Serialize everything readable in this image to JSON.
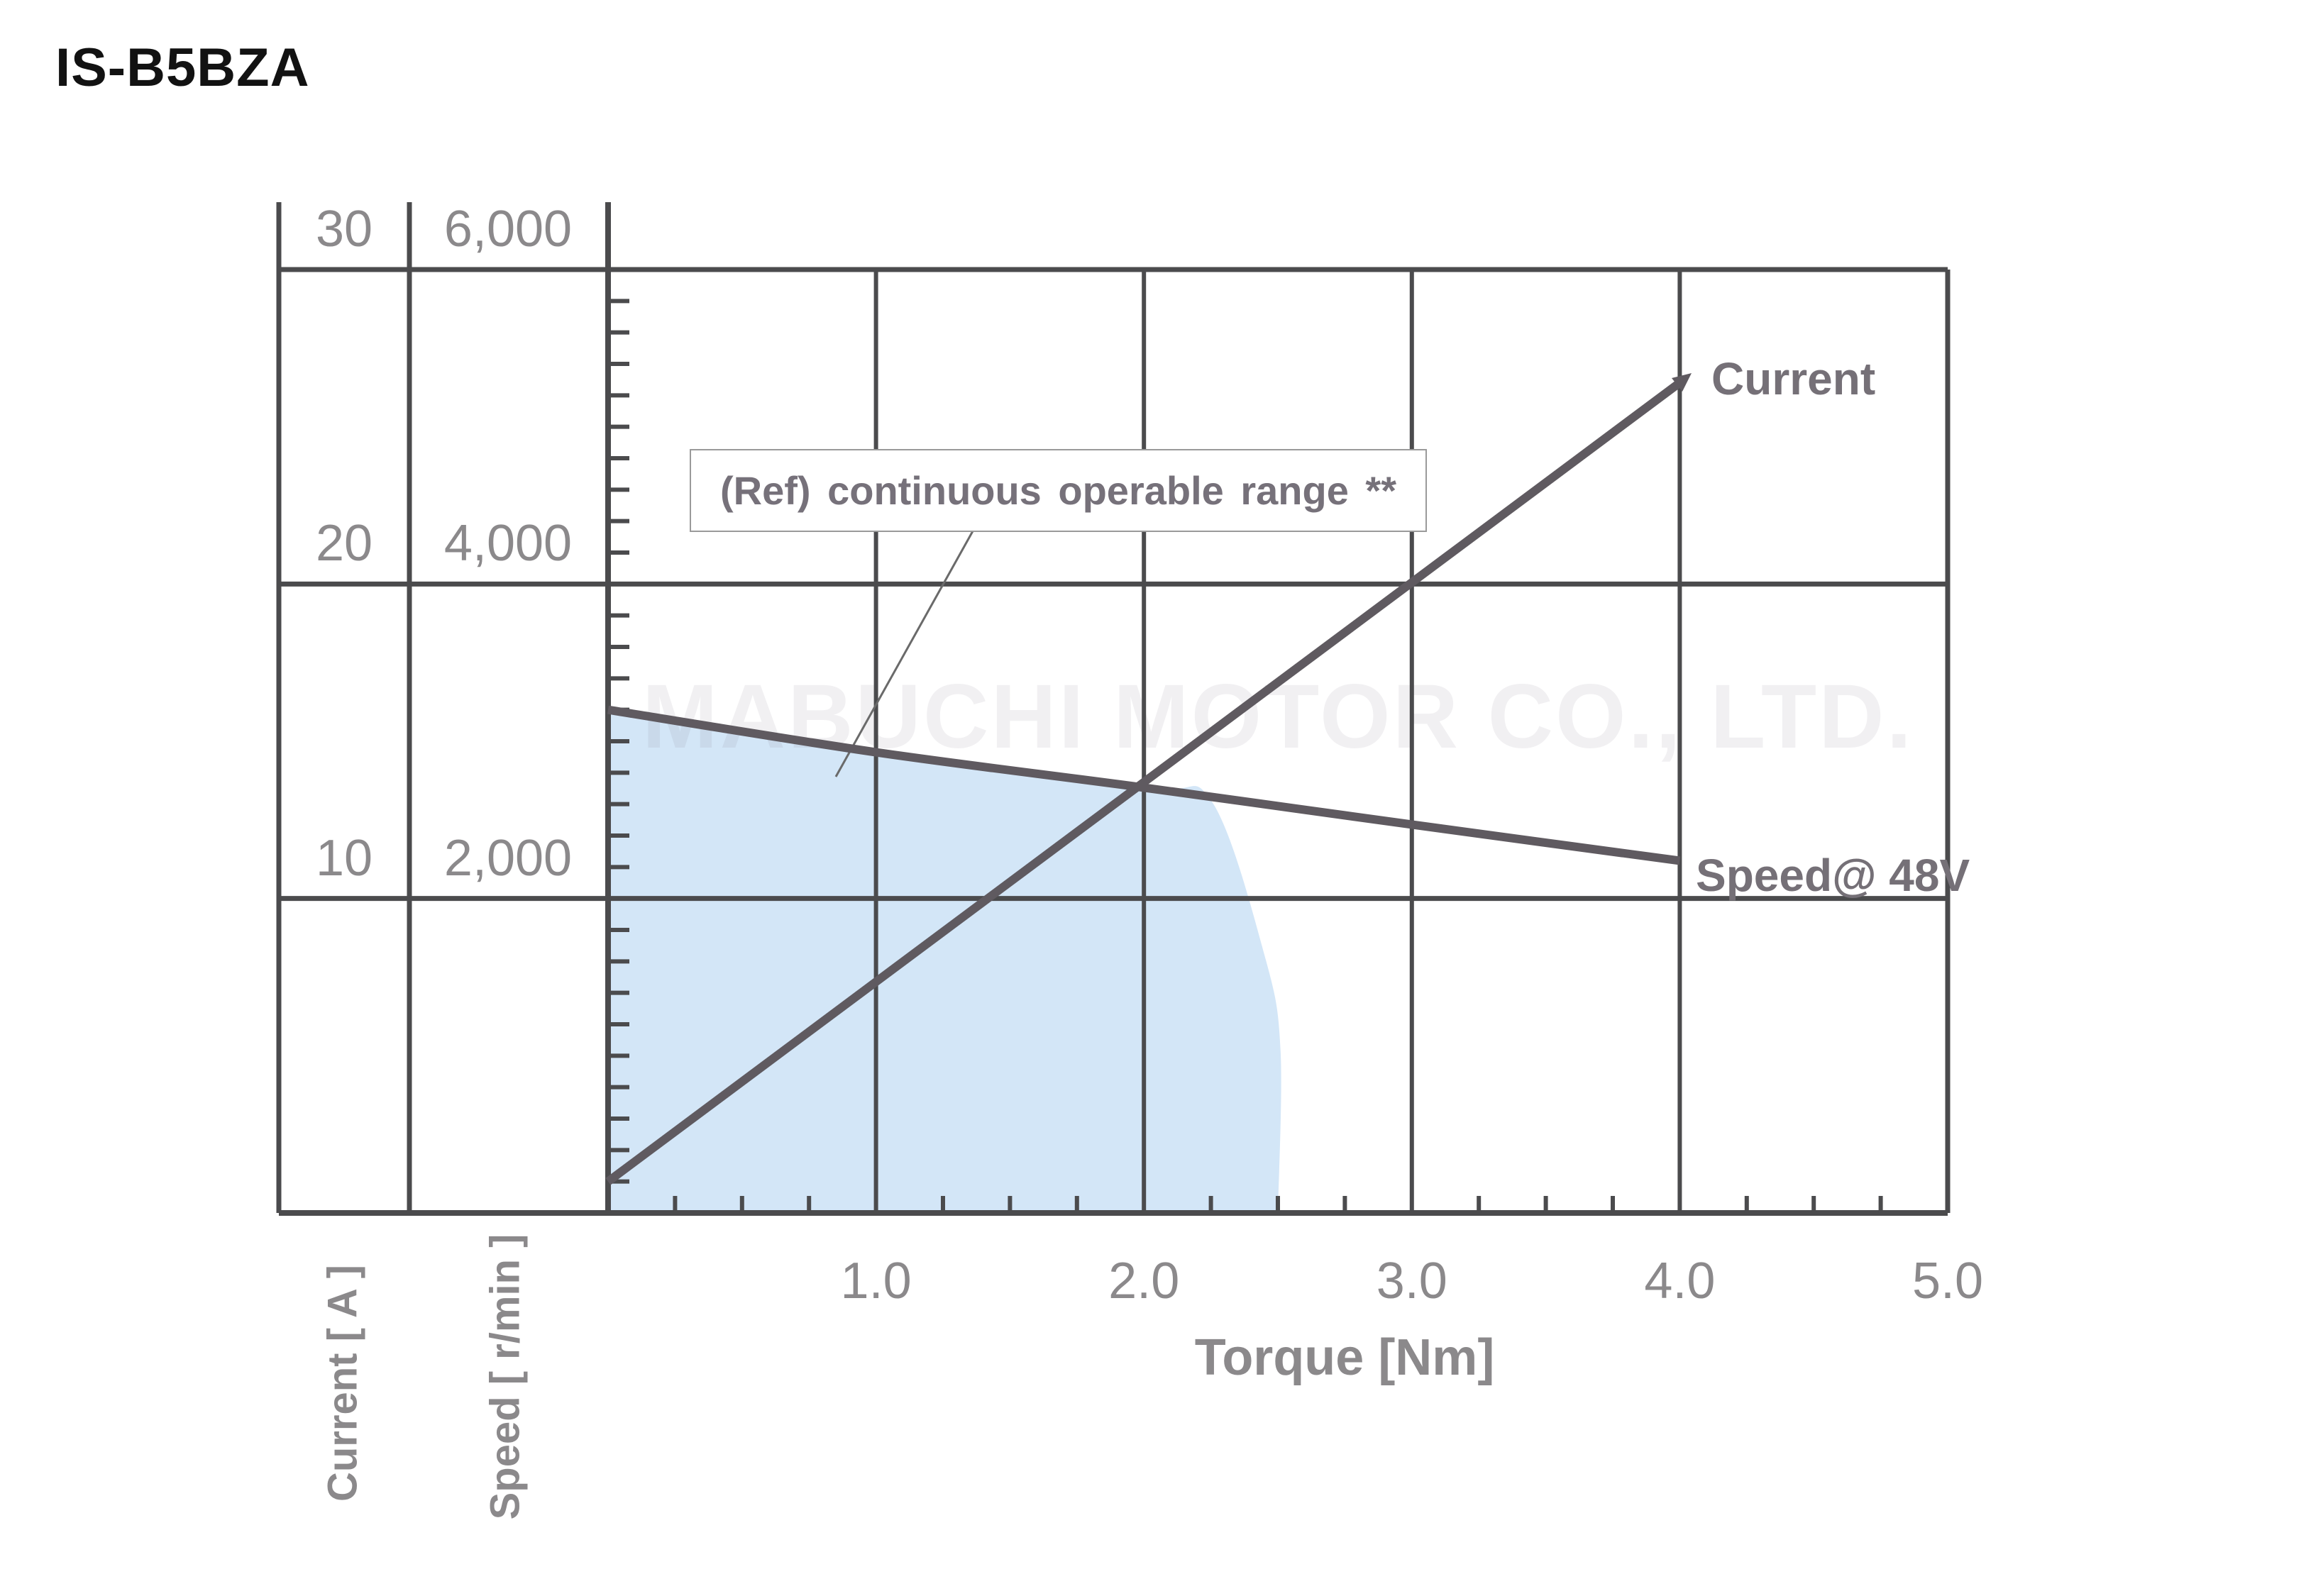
{
  "page": {
    "title": "IS-B5BZA"
  },
  "watermark": {
    "text": "MABUCHI MOTOR CO., LTD."
  },
  "annotation": {
    "label": "(Ref) continuous operable range **"
  },
  "labels": {
    "current_line": "Current",
    "speed_line": "Speed@ 48V",
    "x_title": "Torque [Nm]",
    "y_current_title": "Current [ A ]",
    "y_speed_title": "Speed [ r/min ]"
  },
  "colors": {
    "region_fill": "#d3e6f7",
    "grid": "#4b4b4d",
    "series_line": "#5f5a60",
    "label_gray": "#8b898b",
    "leader": "#6a6a6a",
    "watermark": "rgba(95,85,115,0.09)",
    "annotation_border": "#9a9a9a"
  },
  "chart_data": {
    "type": "line",
    "title": "IS-B5BZA motor performance: current and speed vs torque",
    "xlabel": "Torque [Nm]",
    "x_axis": {
      "range": [
        0,
        5
      ],
      "tick_values": [
        1,
        2,
        3,
        4,
        5
      ],
      "ticks": [
        "1.0",
        "2.0",
        "3.0",
        "4.0",
        "5.0"
      ],
      "minor_step": 0.25
    },
    "y_axis_current": {
      "label": "Current [ A ]",
      "range": [
        0,
        30
      ],
      "tick_values": [
        30,
        20,
        10
      ],
      "ticks": [
        "30",
        "20",
        "10"
      ],
      "minor_step": 1
    },
    "y_axis_speed": {
      "label": "Speed [ r/min ]",
      "range": [
        0,
        6000
      ],
      "tick_values": [
        6000,
        4000,
        2000
      ],
      "ticks": [
        "6,000",
        "4,000",
        "2,000"
      ],
      "minor_step": 200
    },
    "grid": true,
    "legend_position": "inline-labels",
    "series": [
      {
        "name": "Current",
        "axis": "current",
        "units": "A",
        "points": [
          [
            0,
            1.0
          ],
          [
            1.0,
            7.3
          ],
          [
            2.0,
            13.6
          ],
          [
            3.0,
            20.0
          ],
          [
            4.0,
            26.4
          ]
        ]
      },
      {
        "name": "Speed@ 48V",
        "axis": "speed",
        "units": "r/min",
        "points": [
          [
            0,
            3200
          ],
          [
            1.0,
            2930
          ],
          [
            2.0,
            2705
          ],
          [
            3.0,
            2470
          ],
          [
            4.0,
            2240
          ]
        ]
      }
    ],
    "operable_region": {
      "label": "(Ref) continuous operable range **",
      "axis": "speed",
      "max_torque_nm": 2.5,
      "boundary": [
        [
          0,
          3200
        ],
        [
          1.0,
          2930
        ],
        [
          2.0,
          2705
        ],
        [
          2.25,
          2625
        ],
        [
          2.45,
          1640
        ],
        [
          2.51,
          1030
        ],
        [
          2.5,
          0
        ]
      ]
    }
  }
}
